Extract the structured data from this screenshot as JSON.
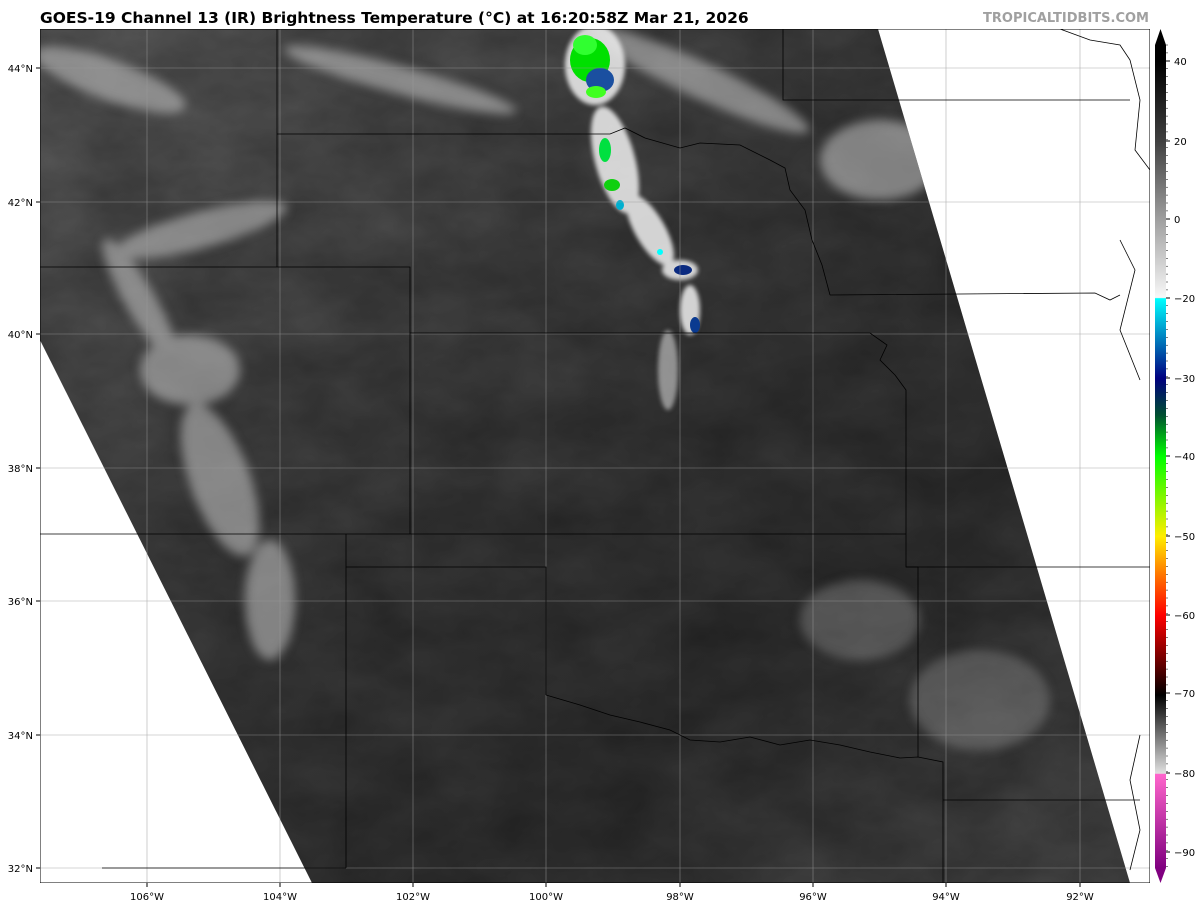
{
  "header": {
    "title": "GOES-19 Channel 13 (IR) Brightness Temperature (°C) at 16:20:58Z Mar 21, 2026",
    "watermark": "TROPICALTIDBITS.COM"
  },
  "map": {
    "longitude_labels": [
      "106°W",
      "104°W",
      "102°W",
      "100°W",
      "98°W",
      "96°W",
      "94°W",
      "92°W"
    ],
    "latitude_labels": [
      "44°N",
      "42°N",
      "40°N",
      "38°N",
      "36°N",
      "34°N",
      "32°N"
    ],
    "grid": true,
    "no_data_color": "#ffffff"
  },
  "colorbar": {
    "ticks": [
      "40",
      "20",
      "0",
      "−20",
      "−30",
      "−40",
      "−50",
      "−60",
      "−70",
      "−80",
      "−90"
    ],
    "colors": {
      "warm": "#000000",
      "mid": "#808080",
      "cold_gray": "#ffffff",
      "cyan": "#00ffff",
      "navy": "#000080",
      "green": "#00ff00",
      "yellow": "#ffff00",
      "red": "#ff0000",
      "pink": "#ff66cc",
      "purple": "#800080"
    }
  }
}
